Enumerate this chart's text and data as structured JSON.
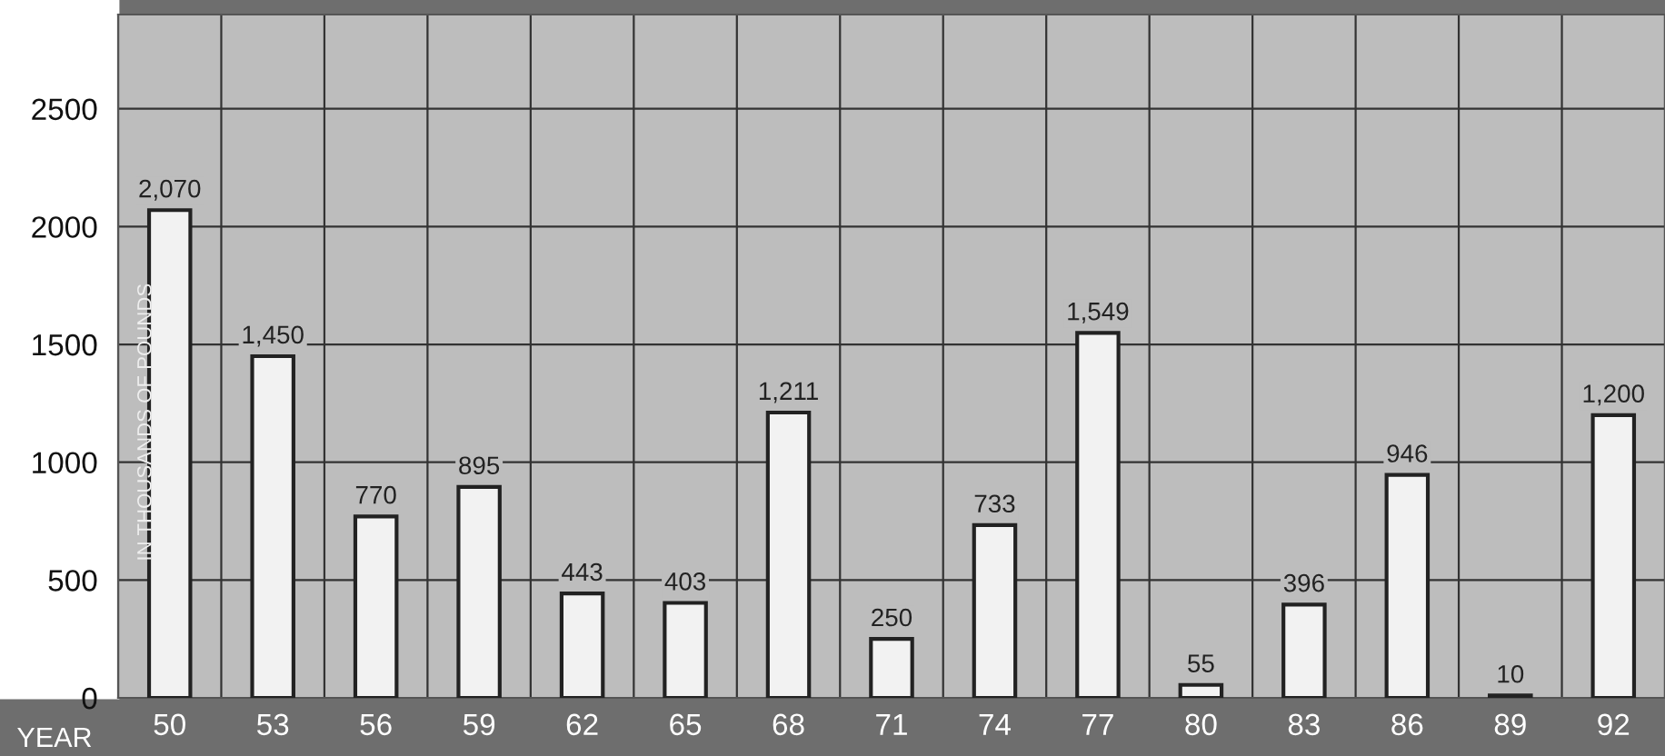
{
  "chart_data": {
    "type": "bar",
    "xlabel": "YEAR",
    "ylabel": "IN THOUSANDS OF POUNDS",
    "categories": [
      "50",
      "53",
      "56",
      "59",
      "62",
      "65",
      "68",
      "71",
      "74",
      "77",
      "80",
      "83",
      "86",
      "89",
      "92"
    ],
    "values": [
      2070,
      1450,
      770,
      895,
      443,
      403,
      1211,
      250,
      733,
      1549,
      55,
      396,
      946,
      10,
      1200
    ],
    "value_labels": [
      "2,070",
      "1,450",
      "770",
      "895",
      "443",
      "403",
      "1,211",
      "250",
      "733",
      "1,549",
      "55",
      "396",
      "946",
      "10",
      "1,200"
    ],
    "color": "#f2f2f2",
    "ylim": [
      0,
      2900
    ],
    "yticks": [
      0,
      500,
      1000,
      1500,
      2000,
      2500
    ],
    "grid": true,
    "legend": false
  }
}
